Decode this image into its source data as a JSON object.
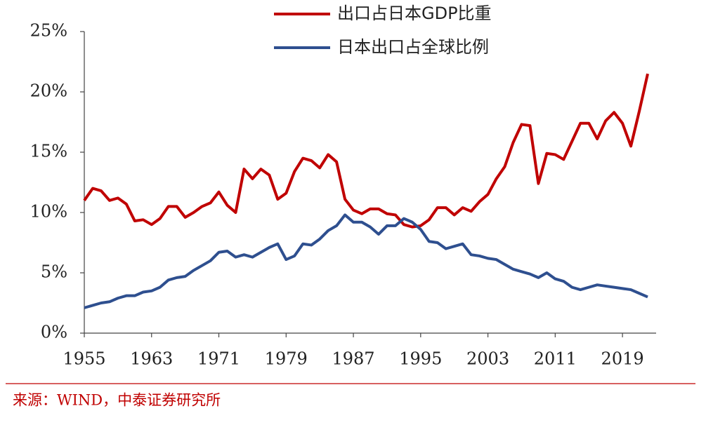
{
  "chart_data": {
    "type": "line",
    "x": [
      1955,
      1956,
      1957,
      1958,
      1959,
      1960,
      1961,
      1962,
      1963,
      1964,
      1965,
      1966,
      1967,
      1968,
      1969,
      1970,
      1971,
      1972,
      1973,
      1974,
      1975,
      1976,
      1977,
      1978,
      1979,
      1980,
      1981,
      1982,
      1983,
      1984,
      1985,
      1986,
      1987,
      1988,
      1989,
      1990,
      1991,
      1992,
      1993,
      1994,
      1995,
      1996,
      1997,
      1998,
      1999,
      2000,
      2001,
      2002,
      2003,
      2004,
      2005,
      2006,
      2007,
      2008,
      2009,
      2010,
      2011,
      2012,
      2013,
      2014,
      2015,
      2016,
      2017,
      2018,
      2019,
      2020,
      2021,
      2022
    ],
    "series": [
      {
        "name": "出口占日本GDP比重",
        "color": "#c00000",
        "values": [
          11.0,
          12.0,
          11.8,
          11.0,
          11.2,
          10.7,
          9.3,
          9.4,
          9.0,
          9.5,
          10.5,
          10.5,
          9.6,
          10.0,
          10.5,
          10.8,
          11.7,
          10.6,
          10.0,
          13.6,
          12.8,
          13.6,
          13.1,
          11.1,
          11.6,
          13.4,
          14.5,
          14.3,
          13.7,
          14.8,
          14.2,
          11.1,
          10.2,
          9.9,
          10.3,
          10.3,
          9.9,
          9.8,
          9.0,
          8.8,
          8.9,
          9.4,
          10.4,
          10.4,
          9.8,
          10.4,
          10.1,
          10.9,
          11.5,
          12.8,
          13.8,
          15.8,
          17.3,
          17.2,
          12.4,
          14.9,
          14.8,
          14.4,
          15.9,
          17.4,
          17.4,
          16.1,
          17.6,
          18.3,
          17.4,
          15.5,
          18.4,
          21.5
        ]
      },
      {
        "name": "日本出口占全球比例",
        "color": "#2e4f8f",
        "values": [
          2.1,
          2.3,
          2.5,
          2.6,
          2.9,
          3.1,
          3.1,
          3.4,
          3.5,
          3.8,
          4.4,
          4.6,
          4.7,
          5.2,
          5.6,
          6.0,
          6.7,
          6.8,
          6.3,
          6.5,
          6.3,
          6.7,
          7.1,
          7.4,
          6.1,
          6.4,
          7.4,
          7.3,
          7.8,
          8.5,
          8.9,
          9.8,
          9.2,
          9.2,
          8.8,
          8.2,
          8.9,
          8.9,
          9.5,
          9.2,
          8.6,
          7.6,
          7.5,
          7.0,
          7.2,
          7.4,
          6.5,
          6.4,
          6.2,
          6.1,
          5.7,
          5.3,
          5.1,
          4.9,
          4.6,
          5.0,
          4.5,
          4.3,
          3.8,
          3.6,
          3.8,
          4.0,
          3.9,
          3.8,
          3.7,
          3.6,
          3.3,
          3.0
        ]
      }
    ],
    "xlim": [
      1955,
      2022
    ],
    "xticks": [
      1955,
      1963,
      1971,
      1979,
      1987,
      1995,
      2003,
      2011,
      2019
    ],
    "ylim": [
      0,
      25
    ],
    "yticks": [
      {
        "value": 0,
        "label": "0%"
      },
      {
        "value": 5,
        "label": "5%"
      },
      {
        "value": 10,
        "label": "10%"
      },
      {
        "value": 15,
        "label": "15%"
      },
      {
        "value": 20,
        "label": "20%"
      },
      {
        "value": 25,
        "label": "25%"
      }
    ],
    "legend": "top",
    "source": "来源：WIND，中泰证券研究所"
  }
}
